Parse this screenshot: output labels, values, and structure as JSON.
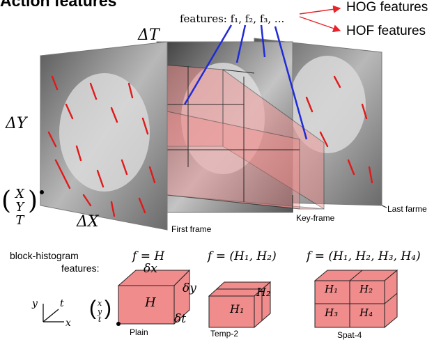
{
  "title": "Action features",
  "legend": {
    "hog": "HOG features",
    "hof": "HOF features"
  },
  "features_label": "features: f₁, f₂, f₃, ...",
  "axes": {
    "delta_t": "ΔT",
    "delta_y": "ΔY",
    "delta_x": "ΔX",
    "vector_x": "X",
    "vector_y": "Y",
    "vector_t": "T"
  },
  "frames": {
    "first": "First frame",
    "key": "Key-frame",
    "last": "Last farme"
  },
  "block_histogram": {
    "label_line1": "block-histogram",
    "label_line2": "features:",
    "small_axes": {
      "y": "y",
      "t": "t",
      "x": "x"
    },
    "small_vector": {
      "x": "x",
      "y": "y",
      "t": "t"
    },
    "plain": {
      "formula": "f = H",
      "cell": "H",
      "dx": "δx",
      "dy": "δy",
      "dt": "δt",
      "name": "Plain"
    },
    "temp2": {
      "formula": "f = (H₁, H₂)",
      "cells": [
        "H₁",
        "H₂"
      ],
      "name": "Temp-2"
    },
    "spat4": {
      "formula": "f = (H₁, H₂, H₃, H₄)",
      "cells": [
        "H₁",
        "H₂",
        "H₃",
        "H₄"
      ],
      "name": "Spat-4"
    }
  },
  "colors": {
    "box_fill": "#f08c8c",
    "box_edge": "#222222",
    "arrow": "#e8242a",
    "blue_line": "#1f2bd6",
    "photo_bg": "#9a9a9a"
  }
}
